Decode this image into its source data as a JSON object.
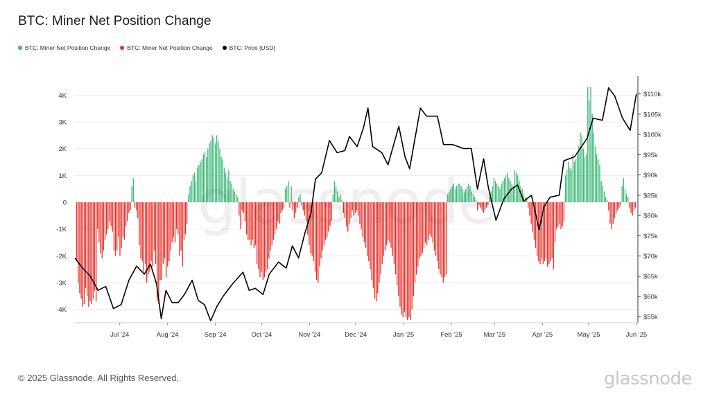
{
  "title": "BTC: Miner Net Position Change",
  "legend": [
    {
      "label": "BTC: Miner Net Position Change",
      "color": "#3cb878"
    },
    {
      "label": "BTC: Miner Net Position Change",
      "color": "#e8302a"
    },
    {
      "label": "BTC: Price [USD]",
      "color": "#000000"
    }
  ],
  "watermark": "glassnode",
  "footer": {
    "copyright": "© 2025 Glassnode. All Rights Reserved.",
    "brand": "glassnode"
  },
  "chart_data": {
    "type": "bar",
    "title": "BTC: Miner Net Position Change",
    "x_axis": {
      "ticks": [
        "Jul '24",
        "Aug '24",
        "Sep '24",
        "Oct '24",
        "Nov '24",
        "Dec '24",
        "Jan '25",
        "Feb '25",
        "Mar '25",
        "Apr '25",
        "May '25",
        "Jun '25"
      ],
      "range": [
        "2024-06-10",
        "2025-06-10"
      ]
    },
    "y_left": {
      "ticks": [
        "4K",
        "3K",
        "2K",
        "1K",
        "0",
        "-1K",
        "-2K",
        "-3K",
        "-4K"
      ],
      "range": [
        -4500,
        4500
      ]
    },
    "y_right": {
      "ticks": [
        "$110k",
        "$105k",
        "$100k",
        "$95k",
        "$90k",
        "$85k",
        "$80k",
        "$75k",
        "$70k",
        "$65k",
        "$60k",
        "$55k"
      ],
      "range": [
        53500,
        113000
      ]
    },
    "grid": "horizontal",
    "legend_position": "top-left",
    "series": [
      {
        "name": "BTC: Miner Net Position Change",
        "kind": "bar",
        "color_positive": "#3cb878",
        "color_negative": "#e8302a",
        "values": [
          -2200,
          -3000,
          -3400,
          -3600,
          -3900,
          -3800,
          -3200,
          -3500,
          -3900,
          -3700,
          -3800,
          -3600,
          -3300,
          -3700,
          -1000,
          -1500,
          -1900,
          -2100,
          -1800,
          -1400,
          -1200,
          -1000,
          -700,
          -900,
          -1100,
          -1800,
          -2000,
          -1800,
          -1300,
          -2000,
          -1700,
          -1300,
          -1400,
          -900,
          -700,
          -400,
          -300,
          600,
          900,
          -200,
          -300,
          -600,
          -1600,
          -2100,
          -2200,
          -2600,
          -2300,
          -3000,
          -2700,
          -2600,
          -2200,
          -2400,
          -1800,
          -2300,
          -3700,
          -3800,
          -2900,
          -2900,
          -2300,
          -2100,
          -2800,
          -2400,
          -2200,
          -1800,
          -1500,
          -1300,
          -1500,
          -1000,
          -1200,
          -2000,
          -1800,
          -2400,
          -1400,
          -1200,
          -800,
          300,
          600,
          800,
          1000,
          1100,
          800,
          1300,
          1400,
          1500,
          1600,
          1800,
          1900,
          1700,
          2000,
          2200,
          2300,
          2500,
          2400,
          2200,
          2500,
          2300,
          2000,
          1700,
          1600,
          1300,
          1100,
          900,
          1200,
          800,
          700,
          500,
          400,
          300,
          200,
          -500,
          -1000,
          -300,
          -400,
          -700,
          -1200,
          -1400,
          -1400,
          -1600,
          -1400,
          -1700,
          -1600,
          -2300,
          -2500,
          -2800,
          -2600,
          -2900,
          -2800,
          -2600,
          -2500,
          -2100,
          -1800,
          -1600,
          -1400,
          -1200,
          -1000,
          -700,
          -800,
          -400,
          -300,
          -200,
          500,
          600,
          800,
          -200,
          600,
          -300,
          -600,
          -400,
          -200,
          200,
          300,
          -100,
          -300,
          -500,
          -700,
          -1200,
          -1600,
          -1900,
          -2000,
          -2200,
          -2600,
          -2900,
          -3000,
          -2400,
          -2100,
          -1800,
          -1600,
          -1400,
          -1300,
          -1100,
          -900,
          -700,
          300,
          800,
          600,
          400,
          200,
          300,
          100,
          -400,
          -600,
          -900,
          -1100,
          -800,
          -600,
          -300,
          -500,
          -400,
          -300,
          -500,
          -800,
          -1000,
          -1300,
          -1500,
          -1700,
          -2000,
          -2200,
          -2500,
          -2900,
          -3200,
          -3600,
          -3700,
          -3400,
          -3000,
          -2700,
          -2300,
          -2000,
          -1800,
          -1600,
          -1400,
          -1500,
          -1700,
          -2000,
          -2300,
          -2700,
          -3100,
          -3500,
          -3900,
          -4200,
          -4300,
          -4100,
          -4300,
          -4400,
          -4300,
          -4400,
          -4000,
          -3500,
          -3000,
          -2700,
          -2400,
          -2100,
          -2000,
          -1900,
          -1700,
          -1500,
          -1600,
          -1400,
          -1200,
          -1300,
          -1500,
          -1800,
          -2000,
          -2200,
          -2500,
          -2700,
          -2800,
          -3000,
          -2800,
          -2700,
          300,
          400,
          500,
          600,
          700,
          500,
          600,
          700,
          700,
          600,
          500,
          400,
          500,
          600,
          700,
          600,
          400,
          300,
          200,
          100,
          -300,
          -100,
          -200,
          -300,
          -400,
          -300,
          -200,
          -100,
          200,
          400,
          600,
          900,
          800,
          700,
          600,
          500,
          700,
          800,
          900,
          1000,
          1100,
          900,
          800,
          700,
          600,
          1200,
          1100,
          1000,
          800,
          600,
          500,
          300,
          200,
          100,
          -200,
          -500,
          -800,
          -1100,
          -1400,
          -1700,
          -2000,
          -2200,
          -2300,
          -2100,
          -2300,
          -2200,
          -2100,
          -2400,
          -2300,
          -2200,
          -2100,
          -2500,
          -1500,
          -1000,
          -900,
          -800,
          -1000,
          -900,
          -700,
          1000,
          1200,
          1500,
          1300,
          1200,
          1800,
          1500,
          1600,
          1800,
          2100,
          2600,
          2500,
          2000,
          1700,
          1800,
          4300,
          3800,
          4300,
          3300,
          2600,
          2100,
          1800,
          1600,
          1400,
          800,
          600,
          400,
          200,
          100,
          -300,
          -800,
          -1000,
          -800,
          -600,
          -400,
          -300,
          -200,
          -100,
          600,
          900,
          500,
          300,
          200,
          -200,
          -400,
          -500,
          -300,
          -200
        ],
        "peak_positive": 4300,
        "peak_negative": -4400
      },
      {
        "name": "BTC: Price [USD]",
        "kind": "line",
        "color": "#000000",
        "points": [
          [
            "2024-06-10",
            69500
          ],
          [
            "2024-06-15",
            67000
          ],
          [
            "2024-06-20",
            65000
          ],
          [
            "2024-06-25",
            61500
          ],
          [
            "2024-06-30",
            62500
          ],
          [
            "2024-07-05",
            57000
          ],
          [
            "2024-07-10",
            58000
          ],
          [
            "2024-07-15",
            64000
          ],
          [
            "2024-07-20",
            67500
          ],
          [
            "2024-07-25",
            65500
          ],
          [
            "2024-07-29",
            68000
          ],
          [
            "2024-08-02",
            63000
          ],
          [
            "2024-08-05",
            54500
          ],
          [
            "2024-08-08",
            61500
          ],
          [
            "2024-08-12",
            58500
          ],
          [
            "2024-08-16",
            58500
          ],
          [
            "2024-08-20",
            60500
          ],
          [
            "2024-08-25",
            64000
          ],
          [
            "2024-08-29",
            59000
          ],
          [
            "2024-09-02",
            58000
          ],
          [
            "2024-09-06",
            54000
          ],
          [
            "2024-09-10",
            57500
          ],
          [
            "2024-09-14",
            60000
          ],
          [
            "2024-09-20",
            63000
          ],
          [
            "2024-09-27",
            66000
          ],
          [
            "2024-10-01",
            61500
          ],
          [
            "2024-10-05",
            62000
          ],
          [
            "2024-10-10",
            60500
          ],
          [
            "2024-10-14",
            65500
          ],
          [
            "2024-10-20",
            68500
          ],
          [
            "2024-10-25",
            67000
          ],
          [
            "2024-10-29",
            72500
          ],
          [
            "2024-11-02",
            69500
          ],
          [
            "2024-11-06",
            75500
          ],
          [
            "2024-11-10",
            80500
          ],
          [
            "2024-11-13",
            89000
          ],
          [
            "2024-11-17",
            90500
          ],
          [
            "2024-11-22",
            98500
          ],
          [
            "2024-11-27",
            95500
          ],
          [
            "2024-12-02",
            96000
          ],
          [
            "2024-12-05",
            99500
          ],
          [
            "2024-12-10",
            97000
          ],
          [
            "2024-12-14",
            101500
          ],
          [
            "2024-12-17",
            106500
          ],
          [
            "2024-12-20",
            97000
          ],
          [
            "2024-12-26",
            95500
          ],
          [
            "2024-12-30",
            92500
          ],
          [
            "2025-01-06",
            102000
          ],
          [
            "2025-01-10",
            94500
          ],
          [
            "2025-01-13",
            91500
          ],
          [
            "2025-01-20",
            106500
          ],
          [
            "2025-01-24",
            104500
          ],
          [
            "2025-01-31",
            104500
          ],
          [
            "2025-02-04",
            97500
          ],
          [
            "2025-02-10",
            97500
          ],
          [
            "2025-02-17",
            96500
          ],
          [
            "2025-02-22",
            96500
          ],
          [
            "2025-02-26",
            86500
          ],
          [
            "2025-03-02",
            94000
          ],
          [
            "2025-03-05",
            87000
          ],
          [
            "2025-03-10",
            78800
          ],
          [
            "2025-03-15",
            84000
          ],
          [
            "2025-03-20",
            86500
          ],
          [
            "2025-03-24",
            87500
          ],
          [
            "2025-03-28",
            83500
          ],
          [
            "2025-04-02",
            85000
          ],
          [
            "2025-04-07",
            76500
          ],
          [
            "2025-04-10",
            82000
          ],
          [
            "2025-04-14",
            84500
          ],
          [
            "2025-04-20",
            85000
          ],
          [
            "2025-04-23",
            93500
          ],
          [
            "2025-04-30",
            94500
          ],
          [
            "2025-05-08",
            99000
          ],
          [
            "2025-05-12",
            104000
          ],
          [
            "2025-05-18",
            103500
          ],
          [
            "2025-05-22",
            111500
          ],
          [
            "2025-05-26",
            109500
          ],
          [
            "2025-05-31",
            104000
          ],
          [
            "2025-06-05",
            101000
          ],
          [
            "2025-06-09",
            110000
          ]
        ]
      }
    ]
  }
}
